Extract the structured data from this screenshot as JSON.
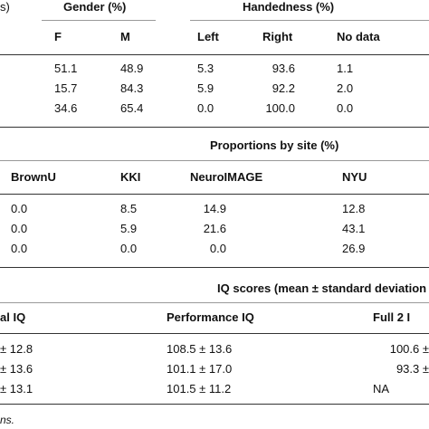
{
  "section1": {
    "header_left_fragment": "s)",
    "gender_title": "Gender (%)",
    "handedness_title": "Handedness (%)",
    "gender_cols": [
      "F",
      "M"
    ],
    "hand_cols": [
      "Left",
      "Right",
      "No data"
    ],
    "rows": [
      {
        "f": "51.1",
        "m": "48.9",
        "left": "5.3",
        "right": "93.6",
        "nodata": "1.1"
      },
      {
        "f": "15.7",
        "m": "84.3",
        "left": "5.9",
        "right": "92.2",
        "nodata": "2.0"
      },
      {
        "f": "34.6",
        "m": "65.4",
        "left": "0.0",
        "right": "100.0",
        "nodata": "0.0"
      }
    ]
  },
  "section2": {
    "title": "Proportions by site (%)",
    "cols": [
      "BrownU",
      "KKI",
      "NeuroIMAGE",
      "NYU"
    ],
    "rows": [
      [
        "0.0",
        "8.5",
        "14.9",
        "12.8"
      ],
      [
        "0.0",
        "5.9",
        "21.6",
        "43.1"
      ],
      [
        "0.0",
        "0.0",
        "0.0",
        "26.9"
      ]
    ]
  },
  "section3": {
    "title": "IQ scores (mean ± standard deviation",
    "cols": [
      "al IQ",
      "Performance IQ",
      "Full 2 I"
    ],
    "rows": [
      [
        "± 12.8",
        "108.5 ± 13.6",
        "100.6 ±"
      ],
      [
        "± 13.6",
        "101.1 ± 17.0",
        "93.3 ±"
      ],
      [
        "± 13.1",
        "101.5 ± 11.2",
        "NA"
      ]
    ]
  },
  "footnote": "ns."
}
